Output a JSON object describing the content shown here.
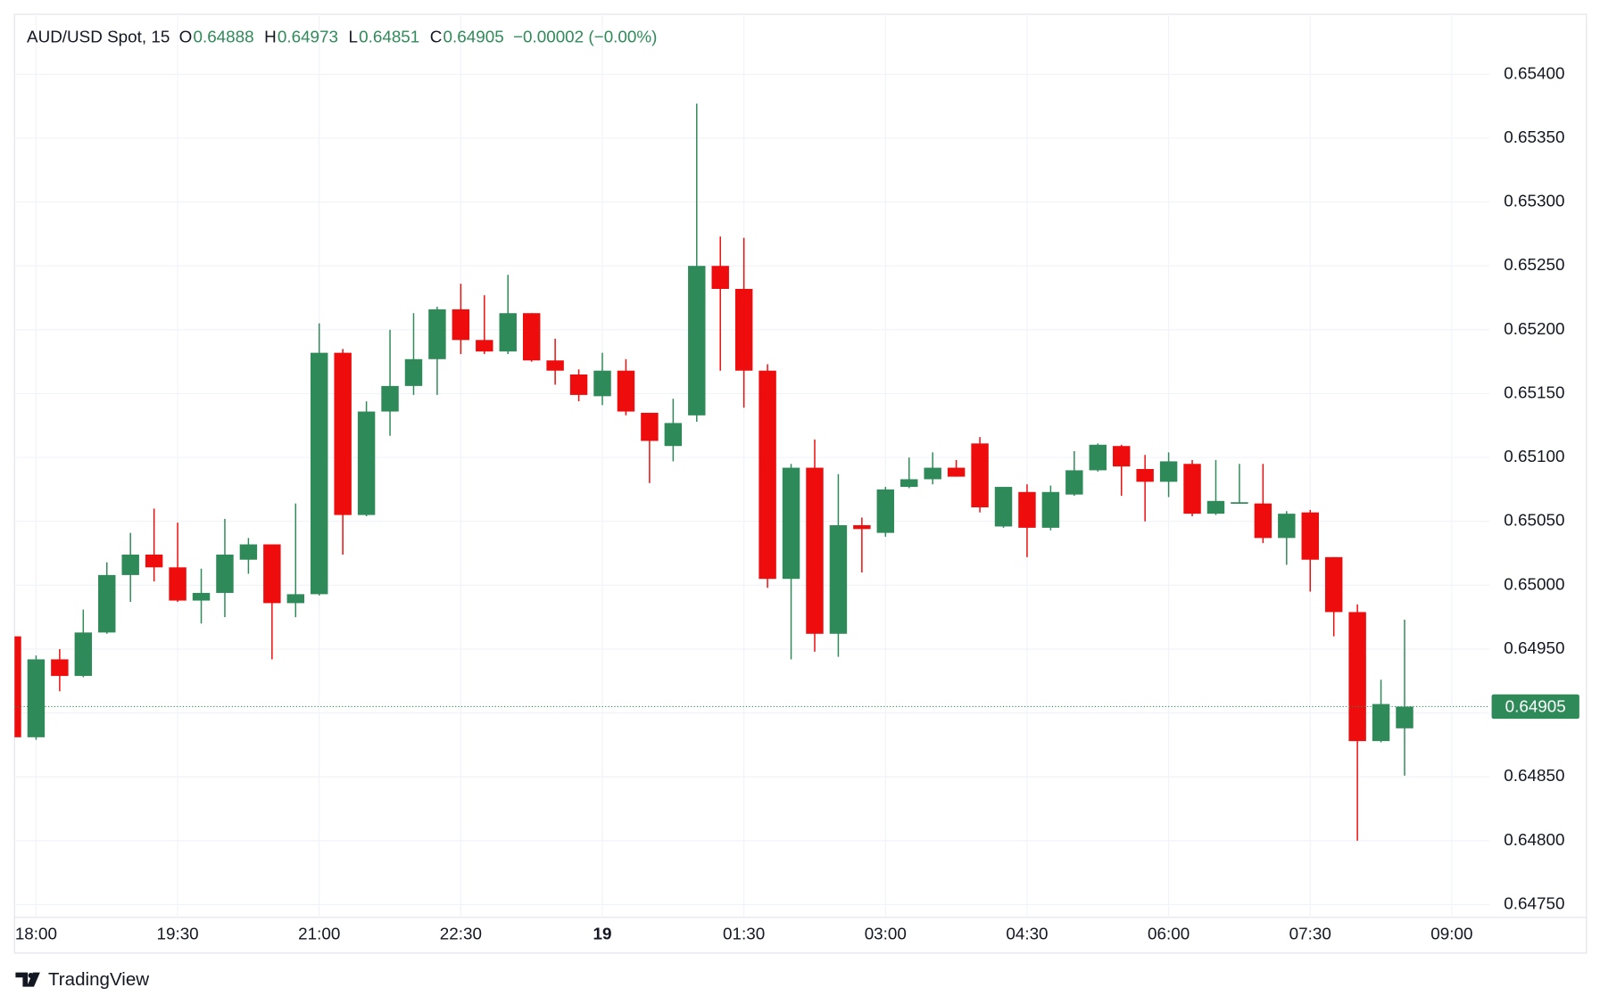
{
  "chart_data": {
    "type": "candlestick",
    "title": "AUD/USD Spot, 15",
    "ohlc_labels": [
      "O",
      "H",
      "L",
      "C"
    ],
    "ohlc_values": [
      0.64888,
      0.64973,
      0.64851,
      0.64905
    ],
    "change": "−0.00002 (−0.00%)",
    "last_price": 0.64905,
    "brand": "TradingView",
    "up_color": "#2f8a59",
    "down_color": "#ee0c0c",
    "grid": true,
    "x": [
      "17:45",
      "18:00",
      "18:15",
      "18:30",
      "18:45",
      "19:00",
      "19:15",
      "19:30",
      "19:45",
      "20:00",
      "20:15",
      "20:30",
      "20:45",
      "21:00",
      "21:15",
      "21:30",
      "21:45",
      "22:00",
      "22:15",
      "22:30",
      "22:45",
      "23:00",
      "23:15",
      "23:30",
      "23:45",
      "00:00",
      "00:15",
      "00:30",
      "00:45",
      "01:00",
      "01:15",
      "01:30",
      "01:45",
      "02:00",
      "02:15",
      "02:30",
      "02:45",
      "03:00",
      "03:15",
      "03:30",
      "03:45",
      "04:00",
      "04:15",
      "04:30",
      "04:45",
      "05:00",
      "05:15",
      "05:30",
      "05:45",
      "06:00",
      "06:15",
      "06:30",
      "06:45",
      "07:00",
      "07:15",
      "07:30",
      "07:45",
      "08:00",
      "08:15",
      "08:30"
    ],
    "open": [
      0.6496,
      0.64881,
      0.64942,
      0.64929,
      0.64963,
      0.65008,
      0.65024,
      0.65014,
      0.64988,
      0.64994,
      0.6502,
      0.65032,
      0.64986,
      0.64993,
      0.65182,
      0.65055,
      0.65136,
      0.65156,
      0.65177,
      0.65216,
      0.65192,
      0.65183,
      0.65213,
      0.65176,
      0.65165,
      0.65148,
      0.65168,
      0.65135,
      0.65109,
      0.65133,
      0.6525,
      0.65232,
      0.65168,
      0.65005,
      0.65092,
      0.64962,
      0.65047,
      0.65041,
      0.65077,
      0.65083,
      0.65092,
      0.65111,
      0.65046,
      0.65073,
      0.65045,
      0.65071,
      0.6509,
      0.65109,
      0.65091,
      0.65081,
      0.65095,
      0.65056,
      0.65064,
      0.65064,
      0.65037,
      0.65057,
      0.65022,
      0.64979,
      0.64878,
      0.64888
    ],
    "high": [
      0.6496,
      0.64945,
      0.6495,
      0.64981,
      0.65018,
      0.65041,
      0.6506,
      0.65049,
      0.65013,
      0.65052,
      0.65037,
      0.65032,
      0.65064,
      0.65205,
      0.65185,
      0.65144,
      0.652,
      0.65213,
      0.65218,
      0.65236,
      0.65227,
      0.65243,
      0.65213,
      0.65193,
      0.65169,
      0.65182,
      0.65177,
      0.65135,
      0.65146,
      0.65377,
      0.65273,
      0.65272,
      0.65173,
      0.65095,
      0.65114,
      0.65087,
      0.65053,
      0.65077,
      0.651,
      0.65104,
      0.65098,
      0.65116,
      0.65077,
      0.65079,
      0.65078,
      0.65105,
      0.65111,
      0.6511,
      0.65102,
      0.65104,
      0.65098,
      0.65098,
      0.65095,
      0.65095,
      0.65058,
      0.65059,
      0.65022,
      0.64985,
      0.64926,
      0.64973
    ],
    "low": [
      0.64881,
      0.64879,
      0.64917,
      0.64928,
      0.64962,
      0.64987,
      0.65003,
      0.64987,
      0.6497,
      0.64975,
      0.65009,
      0.64942,
      0.64975,
      0.64992,
      0.65024,
      0.65054,
      0.65117,
      0.65149,
      0.65149,
      0.65181,
      0.65181,
      0.65181,
      0.65175,
      0.65157,
      0.65144,
      0.65141,
      0.65133,
      0.6508,
      0.65097,
      0.65128,
      0.65168,
      0.65139,
      0.64998,
      0.64942,
      0.64948,
      0.64944,
      0.6501,
      0.65038,
      0.65076,
      0.65079,
      0.65085,
      0.65057,
      0.65045,
      0.65022,
      0.65043,
      0.6507,
      0.65089,
      0.6507,
      0.6505,
      0.65069,
      0.65054,
      0.65055,
      0.65064,
      0.65033,
      0.65016,
      0.64995,
      0.6496,
      0.648,
      0.64877,
      0.64851
    ],
    "close": [
      0.64881,
      0.64942,
      0.64929,
      0.64963,
      0.65008,
      0.65024,
      0.65014,
      0.64988,
      0.64994,
      0.65024,
      0.65032,
      0.64986,
      0.64993,
      0.65182,
      0.65055,
      0.65136,
      0.65156,
      0.65177,
      0.65216,
      0.65192,
      0.65183,
      0.65213,
      0.65176,
      0.65168,
      0.65149,
      0.65168,
      0.65136,
      0.65113,
      0.65127,
      0.6525,
      0.65232,
      0.65168,
      0.65005,
      0.65092,
      0.64962,
      0.65047,
      0.65044,
      0.65075,
      0.65083,
      0.65092,
      0.65085,
      0.65061,
      0.65077,
      0.65045,
      0.65073,
      0.6509,
      0.6511,
      0.65093,
      0.65081,
      0.65097,
      0.65056,
      0.65066,
      0.65065,
      0.65037,
      0.65056,
      0.6502,
      0.64979,
      0.64878,
      0.64907,
      0.64905
    ],
    "ylim": [
      0.6474,
      0.65447
    ],
    "yticks": [
      {
        "value": 0.6475,
        "label": "0.64750"
      },
      {
        "value": 0.648,
        "label": "0.64800"
      },
      {
        "value": 0.6485,
        "label": "0.64850"
      },
      {
        "value": 0.649,
        "label": "0.64900"
      },
      {
        "value": 0.6495,
        "label": "0.64950"
      },
      {
        "value": 0.65,
        "label": "0.65000"
      },
      {
        "value": 0.6505,
        "label": "0.65050"
      },
      {
        "value": 0.651,
        "label": "0.65100"
      },
      {
        "value": 0.6515,
        "label": "0.65150"
      },
      {
        "value": 0.652,
        "label": "0.65200"
      },
      {
        "value": 0.6525,
        "label": "0.65250"
      },
      {
        "value": 0.653,
        "label": "0.65300"
      },
      {
        "value": 0.6535,
        "label": "0.65350"
      },
      {
        "value": 0.654,
        "label": "0.65400"
      }
    ],
    "xticks": [
      "18:00",
      "19:30",
      "21:00",
      "22:30",
      {
        "value": "00:00",
        "label": "19"
      },
      "01:30",
      "03:00",
      "04:30",
      "06:00",
      "07:30",
      "09:00"
    ]
  }
}
